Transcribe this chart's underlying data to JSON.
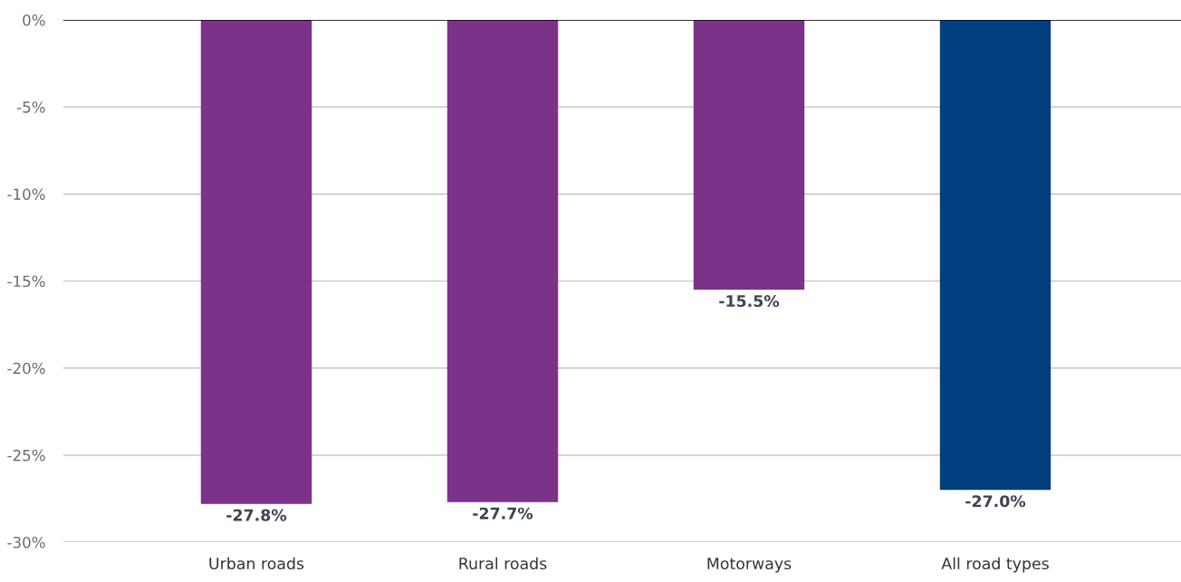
{
  "chart_data": {
    "type": "bar",
    "categories": [
      "Urban roads",
      "Rural roads",
      "Motorways",
      "All road types"
    ],
    "values": [
      -27.8,
      -27.7,
      -15.5,
      -27.0
    ],
    "colors": [
      "#7b3289",
      "#7b3289",
      "#7b3289",
      "#003f7d"
    ],
    "value_labels": [
      "-27.8%",
      "-27.7%",
      "-15.5%",
      "-27.0%"
    ],
    "ylim": [
      -30,
      0
    ],
    "yticks": [
      {
        "value": 0,
        "label": "0%"
      },
      {
        "value": -5,
        "label": "-5%"
      },
      {
        "value": -10,
        "label": "-10%"
      },
      {
        "value": -15,
        "label": "-15%"
      },
      {
        "value": -20,
        "label": "-20%"
      },
      {
        "value": -25,
        "label": "-25%"
      },
      {
        "value": -30,
        "label": "-30%"
      }
    ],
    "grid": "y"
  }
}
